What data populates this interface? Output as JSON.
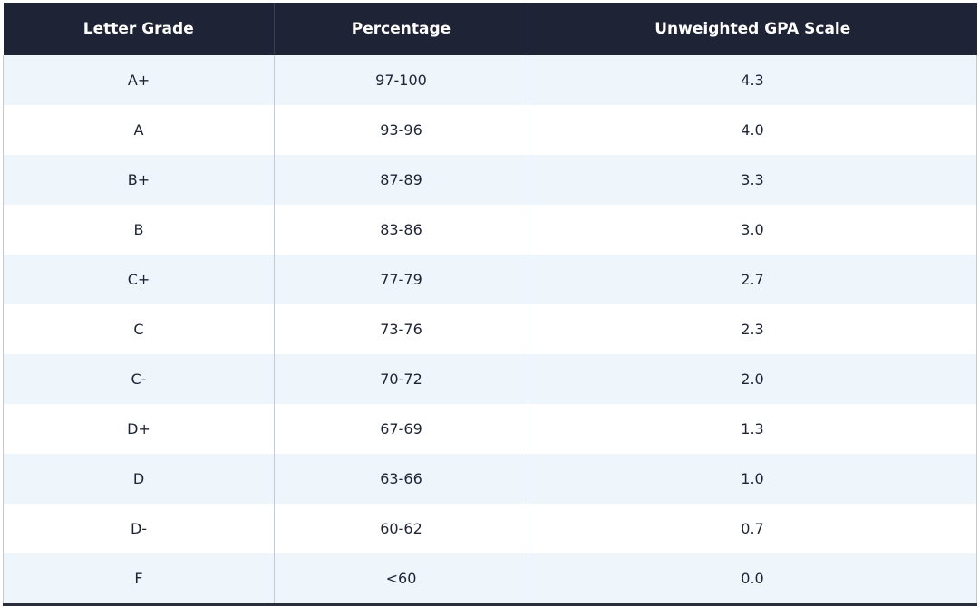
{
  "table": {
    "header": [
      "Letter Grade",
      "Percentage",
      "Unweighted GPA Scale"
    ],
    "rows": [
      [
        "A+",
        "97-100",
        "4.3"
      ],
      [
        "A",
        "93-96",
        "4.0"
      ],
      [
        "B+",
        "87-89",
        "3.3"
      ],
      [
        "B",
        "83-86",
        "3.0"
      ],
      [
        "C+",
        "77-79",
        "2.7"
      ],
      [
        "C",
        "73-76",
        "2.3"
      ],
      [
        "C-",
        "70-72",
        "2.0"
      ],
      [
        "D+",
        "67-69",
        "1.3"
      ],
      [
        "D",
        "63-66",
        "1.0"
      ],
      [
        "D-",
        "60-62",
        "0.7"
      ],
      [
        "F",
        "<60",
        "0.0"
      ]
    ]
  }
}
